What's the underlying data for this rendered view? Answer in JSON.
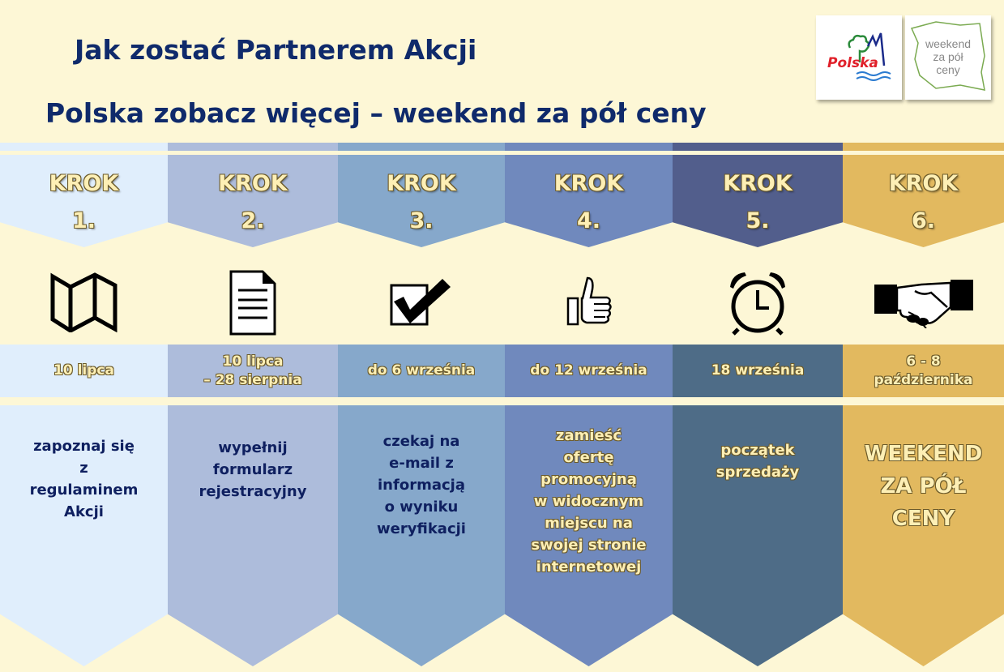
{
  "header": {
    "title": "Jak zostać Partnerem Akcji",
    "subtitle": "Polska zobacz więcej – weekend za pół ceny"
  },
  "logos": [
    {
      "name": "Polska",
      "text": "Polska"
    },
    {
      "name": "weekend-za-pol-ceny",
      "text": "weekend za pół ceny"
    }
  ],
  "steps": [
    {
      "label": "KROK",
      "number": "1.",
      "icon": "map-icon",
      "date": "10 lipca",
      "text": "zapoznaj się\nz\nregulaminem\nAkcji",
      "color": "#e0eefc",
      "date_color": "#e0eefc",
      "text_color": "#0f2060"
    },
    {
      "label": "KROK",
      "number": "2.",
      "icon": "document-icon",
      "date": "10 lipca\n– 28 sierpnia",
      "text": "wypełnij\nformularz\nrejestracyjny",
      "color": "#adbcdb",
      "date_color": "#adbcdb",
      "text_color": "#0f2060"
    },
    {
      "label": "KROK",
      "number": "3.",
      "icon": "checkbox-icon",
      "date": "do 6 września",
      "text": "czekaj na\ne-mail z\ninformacją\no wyniku\nweryfikacji",
      "color": "#86a8cb",
      "date_color": "#86a8cb",
      "text_color": "#0f2060"
    },
    {
      "label": "KROK",
      "number": "4.",
      "icon": "thumbs-up-icon",
      "date": "do 12 września",
      "text": "zamieść\nofertę\npromocyjną\nw widocznym\nmiejscu na\nswojej stronie\ninternetowej",
      "color": "#7089bd",
      "date_color": "#7089bd",
      "text_color": "#fdefb5"
    },
    {
      "label": "KROK",
      "number": "5.",
      "icon": "alarm-clock-icon",
      "date": "18 września",
      "text": "początek\nsprzedaży",
      "color": "#525e8c",
      "date_color": "#4e6c87",
      "text_color": "#fdefb5"
    },
    {
      "label": "KROK",
      "number": "6.",
      "icon": "handshake-icon",
      "date": "6 - 8\npaździernika",
      "text": "WEEKEND\nZA PÓŁ\nCENY",
      "color": "#e2b95f",
      "date_color": "#e2b95f",
      "text_color": "#fdefb5"
    }
  ]
}
